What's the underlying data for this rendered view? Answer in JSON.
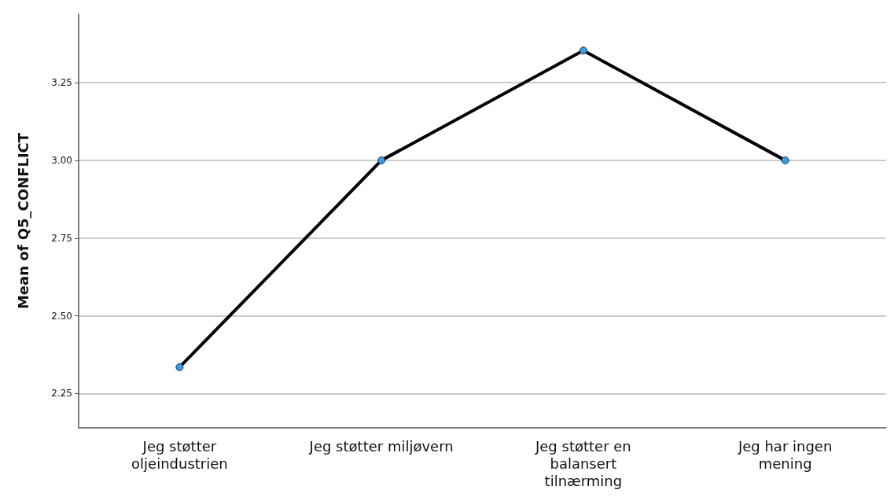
{
  "chart_data": {
    "type": "line",
    "ylabel": "Mean of Q5_CONFLICT",
    "categories": [
      "Jeg støtter\noljeindustrien",
      "Jeg støtter miljøvern",
      "Jeg støtter en\nbalansert\ntilnærming",
      "Jeg har ingen\nmening"
    ],
    "series": [
      {
        "color": "#000000",
        "values": [
          2.335,
          3.0,
          3.353,
          3.0
        ]
      }
    ],
    "marker": "circle",
    "line_style": "solid",
    "grid": "y",
    "ylim": [
      2.14,
      3.47
    ],
    "yticks": [
      2.25,
      {
        "value": 2.5,
        "label": "2.50"
      },
      2.75,
      {
        "value": 3,
        "label": "3.00"
      },
      3.25
    ]
  }
}
